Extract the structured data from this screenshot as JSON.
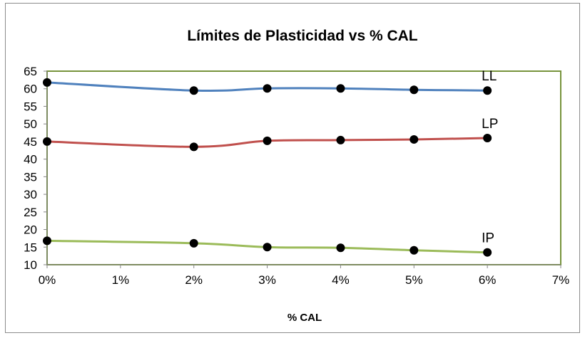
{
  "chart_data": {
    "type": "line",
    "title": "Límites de Plasticidad vs % CAL",
    "xlabel": "% CAL",
    "ylabel": "",
    "x": [
      0,
      2,
      3,
      4,
      5,
      6
    ],
    "x_ticks": [
      "0%",
      "1%",
      "2%",
      "3%",
      "4%",
      "5%",
      "6%",
      "7%"
    ],
    "xlim": [
      0,
      7
    ],
    "ylim": [
      10,
      65
    ],
    "y_ticks": [
      "10",
      "15",
      "20",
      "25",
      "30",
      "35",
      "40",
      "45",
      "50",
      "55",
      "60",
      "65"
    ],
    "grid": false,
    "legend": "none",
    "plot_border_color": "#77933c",
    "series": [
      {
        "name": "LL",
        "values": [
          61.8,
          59.5,
          60.1,
          60.1,
          59.7,
          59.5
        ],
        "color": "#4f81bd"
      },
      {
        "name": "LP",
        "values": [
          45.0,
          43.5,
          45.2,
          45.4,
          45.6,
          46.0
        ],
        "color": "#c0504d"
      },
      {
        "name": "IP",
        "values": [
          16.8,
          16.1,
          15.0,
          14.8,
          14.1,
          13.5
        ],
        "color": "#9bbb59"
      }
    ]
  }
}
